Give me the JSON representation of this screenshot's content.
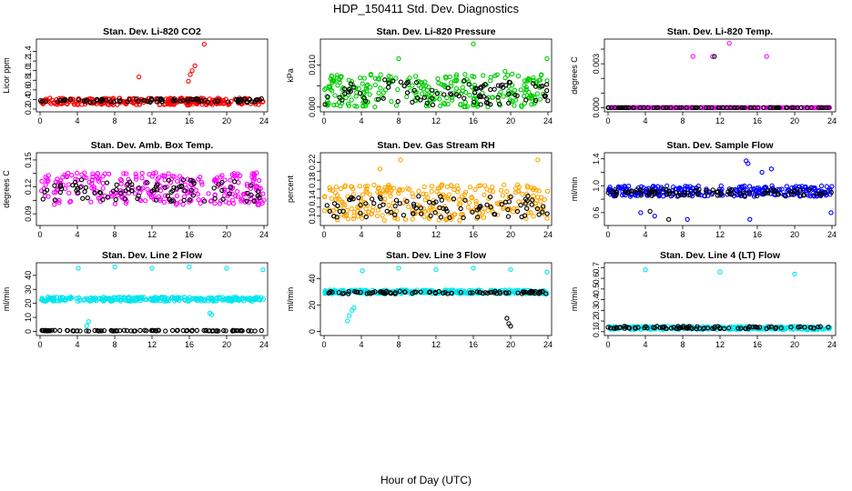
{
  "figure": {
    "title": "HDP_150411  Std. Dev. Diagnostics",
    "xlabel": "Hour of Day (UTC)"
  },
  "chart_data": [
    {
      "type": "scatter",
      "title": "Stan. Dev. Li-820 CO2",
      "ylabel": "Licor ppm",
      "xlim": [
        0,
        24
      ],
      "ylim": [
        0.2,
        1.6
      ],
      "xticks": [
        0,
        4,
        8,
        12,
        16,
        20,
        24
      ],
      "yticks": [
        0.2,
        0.4,
        0.6,
        0.8,
        1.0,
        1.2,
        1.4
      ],
      "ytick_labels": [
        "0.2",
        "0.4",
        "0.6",
        "0.8",
        "1.0",
        "1.2",
        "1.4"
      ],
      "series": [
        {
          "name": "primary",
          "color": "#ff0000",
          "base": 0.36,
          "spread": 0.07,
          "outliers": [
            [
              10.6,
              0.87
            ],
            [
              15.9,
              0.78
            ],
            [
              16.1,
              0.92
            ],
            [
              16.3,
              1.0
            ],
            [
              16.6,
              1.1
            ],
            [
              17.6,
              1.55
            ],
            [
              15.8,
              0.28
            ]
          ]
        },
        {
          "name": "secondary",
          "color": "#000000",
          "base": 0.38,
          "spread": 0.04,
          "outliers": []
        }
      ]
    },
    {
      "type": "scatter",
      "title": "Stan. Dev. Li-820 Pressure",
      "ylabel": "kPa",
      "xlim": [
        0,
        24
      ],
      "ylim": [
        -0.0005,
        0.0155
      ],
      "xticks": [
        0,
        4,
        8,
        12,
        16,
        20,
        24
      ],
      "yticks": [
        0.0,
        0.005,
        0.01
      ],
      "ytick_labels": [
        "0.000",
        "",
        "0.010"
      ],
      "series": [
        {
          "name": "primary",
          "color": "#00cc00",
          "base": 0.004,
          "spread": 0.004,
          "outliers": [
            [
              8.0,
              0.0115
            ],
            [
              16.0,
              0.015
            ],
            [
              19.4,
              0.0085
            ],
            [
              23.9,
              0.0115
            ]
          ]
        },
        {
          "name": "secondary",
          "color": "#000000",
          "base": 0.0035,
          "spread": 0.003,
          "outliers": []
        }
      ]
    },
    {
      "type": "scatter",
      "title": "Stan. Dev. Li-820 Temp.",
      "ylabel": "degrees C",
      "xlim": [
        0,
        24
      ],
      "ylim": [
        -0.0001,
        0.0045
      ],
      "xticks": [
        0,
        4,
        8,
        12,
        16,
        20,
        24
      ],
      "yticks": [
        0.0,
        0.001,
        0.002,
        0.003,
        0.004
      ],
      "ytick_labels": [
        "0.000",
        "",
        "",
        "0.003",
        ""
      ],
      "series": [
        {
          "name": "primary",
          "color": "#ff00ff",
          "base": 0.0,
          "spread": 0.0,
          "outliers": [
            [
              9.1,
              0.0035
            ],
            [
              11.2,
              0.0035
            ],
            [
              13.0,
              0.0044
            ],
            [
              17.0,
              0.0035
            ]
          ]
        },
        {
          "name": "secondary",
          "color": "#000000",
          "base": 0.0,
          "spread": 0.0,
          "outliers": [
            [
              11.4,
              0.0035
            ]
          ]
        }
      ]
    },
    {
      "type": "scatter",
      "title": "Stan. Dev. Amb. Box Temp.",
      "ylabel": "degrees C",
      "xlim": [
        0,
        24
      ],
      "ylim": [
        0.08,
        0.155
      ],
      "xticks": [
        0,
        4,
        8,
        12,
        16,
        20,
        24
      ],
      "yticks": [
        0.09,
        0.105,
        0.12,
        0.135,
        0.15
      ],
      "ytick_labels": [
        "0.09",
        "",
        "0.12",
        "",
        "0.15"
      ],
      "series": [
        {
          "name": "primary",
          "color": "#ff00ff",
          "base": 0.118,
          "spread": 0.018,
          "outliers": []
        },
        {
          "name": "secondary",
          "color": "#000000",
          "base": 0.116,
          "spread": 0.012,
          "outliers": []
        }
      ]
    },
    {
      "type": "scatter",
      "title": "Stan. Dev. Gas Stream RH",
      "ylabel": "percent",
      "xlim": [
        0,
        24
      ],
      "ylim": [
        0.085,
        0.235
      ],
      "xticks": [
        0,
        4,
        8,
        12,
        16,
        20,
        24
      ],
      "yticks": [
        0.1,
        0.12,
        0.14,
        0.16,
        0.18,
        0.2,
        0.22
      ],
      "ytick_labels": [
        "0.10",
        "",
        "0.14",
        "",
        "0.18",
        "",
        "0.22"
      ],
      "series": [
        {
          "name": "primary",
          "color": "#ffa500",
          "base": 0.13,
          "spread": 0.04,
          "outliers": [
            [
              8.2,
              0.225
            ],
            [
              22.9,
              0.225
            ],
            [
              6.0,
              0.205
            ]
          ]
        },
        {
          "name": "secondary",
          "color": "#000000",
          "base": 0.12,
          "spread": 0.025,
          "outliers": []
        }
      ]
    },
    {
      "type": "scatter",
      "title": "Stan. Dev. Sample Flow",
      "ylabel": "ml/min",
      "xlim": [
        0,
        24
      ],
      "ylim": [
        0.45,
        1.45
      ],
      "xticks": [
        0,
        4,
        8,
        12,
        16,
        20,
        24
      ],
      "yticks": [
        0.6,
        0.8,
        1.0,
        1.2,
        1.4
      ],
      "ytick_labels": [
        "0.6",
        "",
        "1.0",
        "",
        "1.4"
      ],
      "series": [
        {
          "name": "primary",
          "color": "#0000ff",
          "base": 0.92,
          "spread": 0.08,
          "outliers": [
            [
              14.8,
              1.37
            ],
            [
              15.0,
              1.33
            ],
            [
              16.5,
              1.2
            ],
            [
              17.5,
              1.25
            ],
            [
              3.5,
              0.6
            ],
            [
              5.0,
              0.55
            ],
            [
              8.5,
              0.5
            ],
            [
              15.2,
              0.5
            ],
            [
              23.9,
              0.6
            ]
          ]
        },
        {
          "name": "secondary",
          "color": "#000000",
          "base": 0.9,
          "spread": 0.05,
          "outliers": [
            [
              4.5,
              0.62
            ],
            [
              6.5,
              0.5
            ]
          ]
        }
      ]
    },
    {
      "type": "scatter",
      "title": "Stan. Dev. Line 2 Flow",
      "ylabel": "ml/min",
      "xlim": [
        0,
        24
      ],
      "ylim": [
        -1,
        47
      ],
      "xticks": [
        0,
        4,
        8,
        12,
        16,
        20,
        24
      ],
      "yticks": [
        0,
        10,
        20,
        30,
        40
      ],
      "ytick_labels": [
        "0",
        "10",
        "20",
        "30",
        "40"
      ],
      "series": [
        {
          "name": "primary",
          "color": "#00e5ee",
          "base": 23,
          "spread": 1.5,
          "outliers": [
            [
              4.1,
              45
            ],
            [
              8.0,
              46
            ],
            [
              12.0,
              45
            ],
            [
              16.0,
              46
            ],
            [
              20.0,
              45
            ],
            [
              23.9,
              44
            ],
            [
              5.0,
              4
            ],
            [
              5.2,
              7
            ],
            [
              18.2,
              13
            ],
            [
              18.4,
              12
            ]
          ]
        },
        {
          "name": "secondary",
          "color": "#000000",
          "base": 0.5,
          "spread": 0.3,
          "outliers": []
        }
      ]
    },
    {
      "type": "scatter",
      "title": "Stan. Dev. Line 3 Flow",
      "ylabel": "ml/min",
      "xlim": [
        0,
        24
      ],
      "ylim": [
        -1,
        50
      ],
      "xticks": [
        0,
        4,
        8,
        12,
        16,
        20,
        24
      ],
      "yticks": [
        0,
        20,
        40
      ],
      "ytick_labels": [
        "0",
        "20",
        "40"
      ],
      "series": [
        {
          "name": "primary",
          "color": "#00e5ee",
          "base": 30,
          "spread": 1.5,
          "outliers": [
            [
              4.1,
              46
            ],
            [
              8.0,
              48
            ],
            [
              12.0,
              47
            ],
            [
              16.0,
              48
            ],
            [
              20.0,
              47
            ],
            [
              23.9,
              45
            ],
            [
              2.5,
              8
            ],
            [
              2.7,
              12
            ],
            [
              3.0,
              16
            ],
            [
              3.2,
              18
            ]
          ]
        },
        {
          "name": "secondary",
          "color": "#000000",
          "base": 29.5,
          "spread": 1.0,
          "outliers": [
            [
              19.6,
              10
            ],
            [
              19.8,
              6
            ],
            [
              20.0,
              4
            ]
          ]
        }
      ]
    },
    {
      "type": "scatter",
      "title": "Stan. Dev. Line 4 (LT) Flow",
      "ylabel": "ml/min",
      "xlim": [
        0,
        24
      ],
      "ylim": [
        0.09,
        0.72
      ],
      "xticks": [
        0,
        4,
        8,
        12,
        16,
        20,
        24
      ],
      "yticks": [
        0.1,
        0.2,
        0.3,
        0.4,
        0.5,
        0.6,
        0.7
      ],
      "ytick_labels": [
        "0.1",
        "0.2",
        "0.3",
        "0.4",
        "0.5",
        "0.6",
        "0.7"
      ],
      "series": [
        {
          "name": "primary",
          "color": "#00e5ee",
          "base": 0.135,
          "spread": 0.015,
          "outliers": [
            [
              4.0,
              0.68
            ],
            [
              12.0,
              0.66
            ],
            [
              20.0,
              0.64
            ]
          ]
        },
        {
          "name": "secondary",
          "color": "#000000",
          "base": 0.14,
          "spread": 0.012,
          "outliers": []
        }
      ]
    }
  ]
}
